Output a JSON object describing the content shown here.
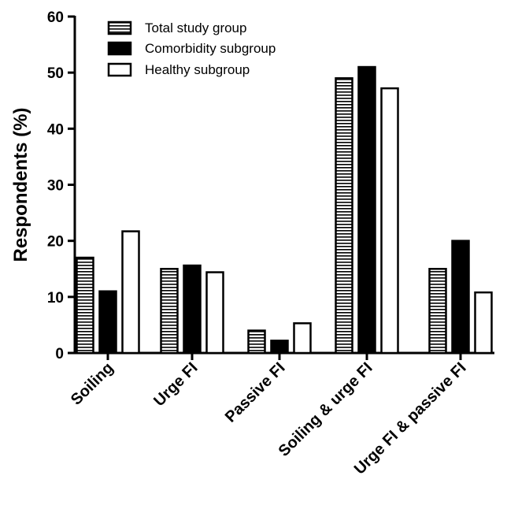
{
  "chart_data": {
    "type": "bar",
    "title": "",
    "xlabel": "",
    "ylabel": "Respondents (%)",
    "ylim": [
      0,
      60
    ],
    "yticks": [
      0,
      10,
      20,
      30,
      40,
      50,
      60
    ],
    "categories": [
      "Soiling",
      "Urge FI",
      "Passive FI",
      "Soiling & urge FI",
      "Urge FI & passive FI"
    ],
    "series": [
      {
        "name": "Total study group",
        "values": [
          17,
          15,
          4,
          49,
          15
        ],
        "style": "horizontal-stripes",
        "color": "#000000"
      },
      {
        "name": "Comorbidity subgroup",
        "values": [
          11,
          15.6,
          2.2,
          51,
          20
        ],
        "style": "solid",
        "color": "#000000"
      },
      {
        "name": "Healthy subgroup",
        "values": [
          21.7,
          14.4,
          5.3,
          47.2,
          10.8
        ],
        "style": "open",
        "color": "#ffffff"
      }
    ],
    "grid": false,
    "legend_position": "top-left"
  }
}
